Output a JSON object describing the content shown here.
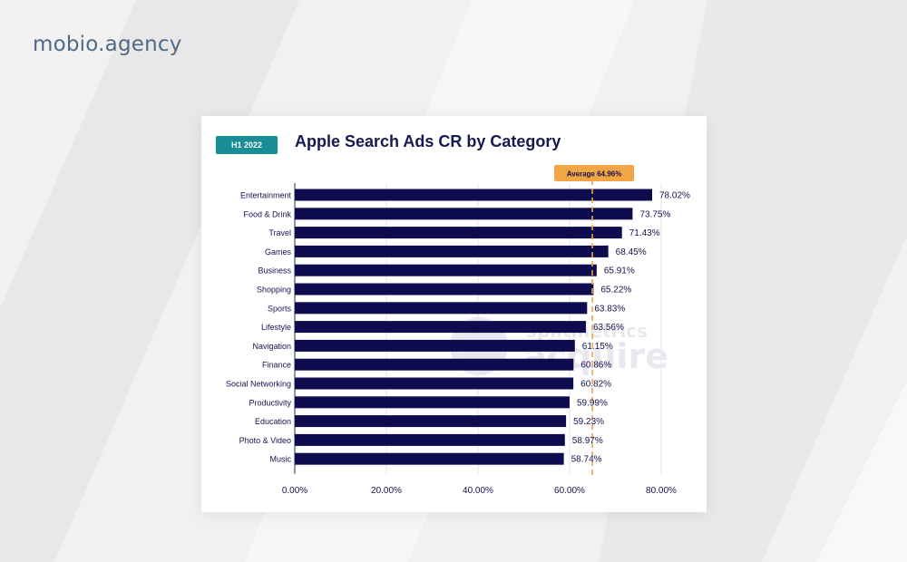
{
  "brand": "mobio.agency",
  "badge": "H1 2022",
  "chart_data": {
    "type": "bar",
    "orientation": "horizontal",
    "title": "Apple Search Ads CR by Category",
    "categories": [
      "Entertainment",
      "Food & Drink",
      "Travel",
      "Games",
      "Business",
      "Shopping",
      "Sports",
      "Lifestyle",
      "Navigation",
      "Finance",
      "Social Networking",
      "Productivity",
      "Education",
      "Photo & Video",
      "Music"
    ],
    "values": [
      78.02,
      73.75,
      71.43,
      68.45,
      65.91,
      65.22,
      63.83,
      63.56,
      61.15,
      60.86,
      60.82,
      59.99,
      59.23,
      58.97,
      58.74
    ],
    "value_labels": [
      "78.02%",
      "73.75%",
      "71.43%",
      "68.45%",
      "65.91%",
      "65.22%",
      "63.83%",
      "63.56%",
      "61.15%",
      "60.86%",
      "60.82%",
      "59.99%",
      "59.23%",
      "58.97%",
      "58.74%"
    ],
    "xlim": [
      0,
      80
    ],
    "xticks": [
      0,
      20,
      40,
      60,
      80
    ],
    "xtick_labels": [
      "0.00%",
      "20.00%",
      "40.00%",
      "60.00%",
      "80.00%"
    ],
    "average": 64.96,
    "average_label": "Average 64.96%",
    "grid": "vertical",
    "colors": {
      "bar": "#0e0c4f",
      "average": "#f2a545",
      "badge": "#1a8c95",
      "title": "#151a4f",
      "brand": "#4f6a86"
    }
  }
}
